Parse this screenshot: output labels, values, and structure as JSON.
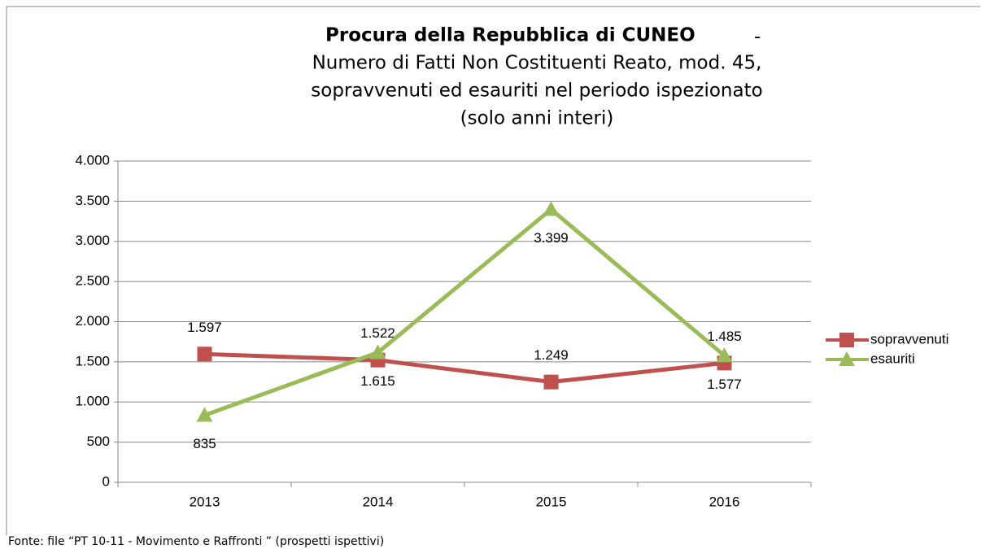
{
  "chart_data": {
    "type": "line",
    "title": "Procura della Repubblica di CUNEO",
    "title_suffix": "-",
    "subtitle": [
      "Numero di Fatti Non Costituenti Reato, mod. 45,",
      "sopravvenuti ed esauriti nel periodo ispezionato",
      "(solo anni interi)"
    ],
    "categories": [
      "2013",
      "2014",
      "2015",
      "2016"
    ],
    "series": [
      {
        "name": "sopravvenuti",
        "color": "#c0504d",
        "marker": "square",
        "values": [
          1597,
          1522,
          1249,
          1485
        ],
        "value_labels": [
          "1.597",
          "1.522",
          "1.249",
          "1.485"
        ]
      },
      {
        "name": "esauriti",
        "color": "#9bbb59",
        "marker": "triangle",
        "values": [
          835,
          1615,
          3399,
          1577
        ],
        "value_labels": [
          "835",
          "1.615",
          "3.399",
          "1.577"
        ]
      }
    ],
    "ylim": [
      0,
      4000
    ],
    "yticks": [
      0,
      500,
      {
        "value": 1000,
        "label": "1.000"
      },
      {
        "value": 1500,
        "label": "1.500"
      },
      {
        "value": 2000,
        "label": "2.000"
      },
      {
        "value": 2500,
        "label": "2.500"
      },
      {
        "value": 3000,
        "label": "3.000"
      },
      {
        "value": 3500,
        "label": "3.500"
      },
      {
        "value": 4000,
        "label": "4.000"
      }
    ],
    "grid": true,
    "legend": "right",
    "source": "Fonte: file “PT 10-11 - Movimento e Raffronti ” (prospetti ispettivi)"
  }
}
